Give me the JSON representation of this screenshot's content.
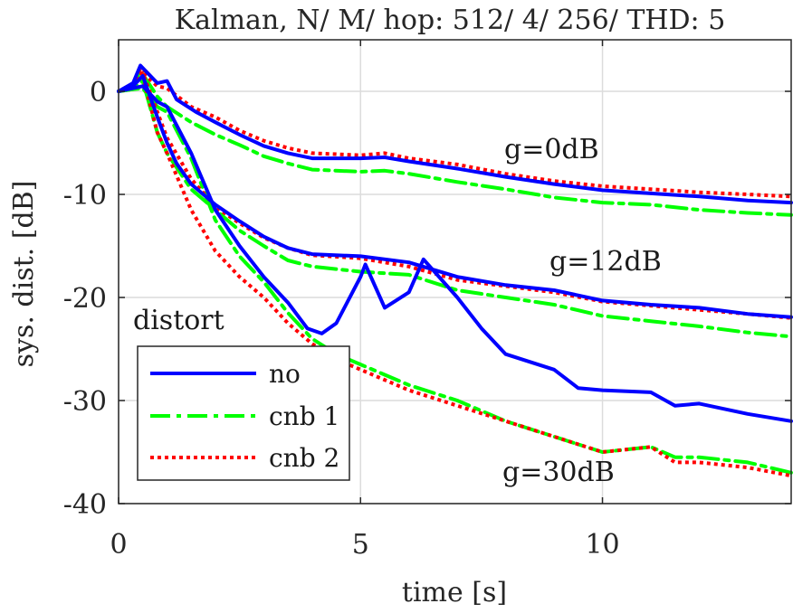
{
  "chart_data": {
    "type": "line",
    "title": "Kalman, N/ M/ hop: 512/ 4/ 256/ THD: 5",
    "xlabel": "time [s]",
    "ylabel": "sys. dist. [dB]",
    "xlim": [
      0,
      13.9
    ],
    "ylim": [
      -40,
      5
    ],
    "xticks": [
      0,
      5,
      10
    ],
    "yticks": [
      0,
      -10,
      -20,
      -30,
      -40
    ],
    "grid": true,
    "legend": {
      "title": "distort",
      "placement": "lower-left",
      "entries": [
        "no",
        "cnb 1",
        "cnb 2"
      ]
    },
    "annotations": [
      {
        "text": "g=0dB",
        "x": 8.6,
        "y": -5.3
      },
      {
        "text": "g=12dB",
        "x": 8.9,
        "y": -16.5
      },
      {
        "text": "g=30dB",
        "x": 8.0,
        "y": -37.4
      }
    ],
    "series": [
      {
        "name": "no",
        "group": "g=0dB",
        "color": "#0000ff",
        "style": "solid",
        "x": [
          0,
          0.3,
          0.45,
          0.8,
          1.0,
          1.2,
          1.6,
          2.0,
          2.5,
          3.0,
          3.5,
          4.0,
          5.0,
          5.5,
          6.0,
          7.0,
          8.0,
          9.0,
          10.0,
          11.0,
          12.0,
          13.0,
          13.9
        ],
        "y": [
          0,
          0.8,
          2.5,
          0.8,
          1.0,
          -0.8,
          -2.0,
          -3.0,
          -4.2,
          -5.3,
          -6.0,
          -6.5,
          -6.5,
          -6.4,
          -6.8,
          -7.5,
          -8.3,
          -9.0,
          -9.6,
          -9.9,
          -10.2,
          -10.6,
          -10.8
        ]
      },
      {
        "name": "cnb 1",
        "group": "g=0dB",
        "color": "#00ff00",
        "style": "dashdot",
        "x": [
          0,
          0.3,
          0.45,
          0.8,
          1.0,
          1.5,
          2.0,
          2.5,
          3.0,
          3.5,
          4.0,
          5.0,
          5.5,
          6.0,
          7.0,
          8.0,
          9.0,
          10.0,
          11.0,
          12.0,
          13.0,
          13.9
        ],
        "y": [
          0,
          0.5,
          2.0,
          -0.5,
          -1.5,
          -3.0,
          -4.2,
          -5.2,
          -6.3,
          -7.0,
          -7.6,
          -7.8,
          -7.7,
          -8.0,
          -8.8,
          -9.5,
          -10.3,
          -10.8,
          -11.0,
          -11.5,
          -11.8,
          -12.0
        ]
      },
      {
        "name": "cnb 2",
        "group": "g=0dB",
        "color": "#ff0000",
        "style": "dotted",
        "x": [
          0,
          0.3,
          0.45,
          0.8,
          1.0,
          1.5,
          2.0,
          2.5,
          3.0,
          3.5,
          4.0,
          5.0,
          5.5,
          6.0,
          7.0,
          8.0,
          9.0,
          10.0,
          11.0,
          12.0,
          13.0,
          13.9
        ],
        "y": [
          0,
          0.6,
          2.0,
          0.5,
          0.3,
          -1.5,
          -2.5,
          -3.8,
          -4.8,
          -5.5,
          -6.0,
          -6.2,
          -6.0,
          -6.5,
          -7.1,
          -8.0,
          -8.7,
          -9.2,
          -9.5,
          -9.8,
          -10.0,
          -10.2
        ]
      },
      {
        "name": "no",
        "group": "g=12dB",
        "color": "#0000ff",
        "style": "solid",
        "x": [
          0,
          0.3,
          0.5,
          0.8,
          1.0,
          1.2,
          1.5,
          2.0,
          2.5,
          3.0,
          3.5,
          4.0,
          5.0,
          6.0,
          7.0,
          8.0,
          9.0,
          10.0,
          11.0,
          12.0,
          13.0,
          13.9
        ],
        "y": [
          0,
          0.5,
          1.5,
          -2.5,
          -5.0,
          -7.0,
          -9.0,
          -11.0,
          -12.6,
          -14.1,
          -15.2,
          -15.8,
          -16.0,
          -16.6,
          -18.0,
          -18.8,
          -19.3,
          -20.3,
          -20.7,
          -21.0,
          -21.6,
          -21.9
        ]
      },
      {
        "name": "cnb 1",
        "group": "g=12dB",
        "color": "#00ff00",
        "style": "dashdot",
        "x": [
          0,
          0.3,
          0.5,
          0.8,
          1.0,
          1.5,
          2.0,
          2.5,
          3.0,
          3.5,
          4.0,
          5.0,
          6.0,
          7.0,
          8.0,
          9.0,
          10.0,
          11.0,
          12.0,
          13.0,
          13.9
        ],
        "y": [
          0,
          0.2,
          1.0,
          -4.0,
          -6.0,
          -9.5,
          -11.5,
          -13.5,
          -15.0,
          -16.4,
          -17.0,
          -17.5,
          -17.8,
          -19.3,
          -20.0,
          -20.7,
          -21.8,
          -22.3,
          -22.8,
          -23.4,
          -23.8
        ]
      },
      {
        "name": "cnb 2",
        "group": "g=12dB",
        "color": "#ff0000",
        "style": "dotted",
        "x": [
          0,
          0.3,
          0.5,
          0.8,
          1.0,
          1.5,
          2.0,
          2.5,
          3.0,
          3.5,
          4.0,
          5.0,
          6.0,
          7.0,
          8.0,
          9.0,
          10.0,
          11.0,
          12.0,
          13.0,
          13.9
        ],
        "y": [
          0,
          0.4,
          1.8,
          -2.0,
          -4.5,
          -8.5,
          -11.2,
          -12.8,
          -14.2,
          -15.2,
          -15.9,
          -16.2,
          -17.0,
          -18.3,
          -18.9,
          -19.5,
          -20.4,
          -20.8,
          -21.2,
          -21.6,
          -22.0
        ]
      },
      {
        "name": "no",
        "group": "g=30dB",
        "color": "#0000ff",
        "style": "solid",
        "x": [
          0,
          0.3,
          0.5,
          0.8,
          1.0,
          1.5,
          2.0,
          2.5,
          3.0,
          3.5,
          3.9,
          4.2,
          4.5,
          5.0,
          5.1,
          5.5,
          6.0,
          6.3,
          7.0,
          7.5,
          8.0,
          9.0,
          9.5,
          10.0,
          11.0,
          11.5,
          12.0,
          13.0,
          13.9
        ],
        "y": [
          0,
          0.3,
          0.5,
          -1.0,
          -1.5,
          -6.0,
          -11.5,
          -15.0,
          -18.0,
          -20.5,
          -23.0,
          -23.5,
          -22.5,
          -18.0,
          -16.8,
          -21.0,
          -19.5,
          -16.3,
          -20.0,
          -23.0,
          -25.5,
          -27.0,
          -28.8,
          -29.0,
          -29.2,
          -30.5,
          -30.3,
          -31.3,
          -32.0
        ]
      },
      {
        "name": "cnb 1",
        "group": "g=30dB",
        "color": "#00ff00",
        "style": "dashdot",
        "x": [
          0,
          0.3,
          0.5,
          0.8,
          1.0,
          1.5,
          2.0,
          2.5,
          3.0,
          3.5,
          4.0,
          4.5,
          5.0,
          6.0,
          7.0,
          8.0,
          9.0,
          10.0,
          11.0,
          11.5,
          12.0,
          13.0,
          13.9
        ],
        "y": [
          0,
          0.2,
          0.3,
          -1.5,
          -2.0,
          -6.5,
          -12.5,
          -16.0,
          -18.5,
          -21.5,
          -24.0,
          -25.5,
          -26.5,
          -28.5,
          -30.0,
          -32.0,
          -33.5,
          -35.0,
          -34.5,
          -35.5,
          -35.5,
          -36.0,
          -37.0
        ]
      },
      {
        "name": "cnb 2",
        "group": "g=30dB",
        "color": "#ff0000",
        "style": "dotted",
        "x": [
          0,
          0.3,
          0.5,
          0.8,
          1.0,
          1.5,
          2.0,
          2.5,
          3.0,
          3.5,
          4.0,
          4.5,
          5.0,
          6.0,
          7.0,
          8.0,
          9.0,
          10.0,
          11.0,
          11.5,
          12.0,
          13.0,
          13.9
        ],
        "y": [
          0,
          0.5,
          1.5,
          -4.0,
          -6.0,
          -11.5,
          -15.5,
          -18.0,
          -20.0,
          -22.5,
          -24.5,
          -26.0,
          -27.0,
          -29.0,
          -30.5,
          -32.0,
          -33.5,
          -35.0,
          -34.5,
          -36.0,
          -36.0,
          -36.5,
          -37.3
        ]
      }
    ]
  }
}
